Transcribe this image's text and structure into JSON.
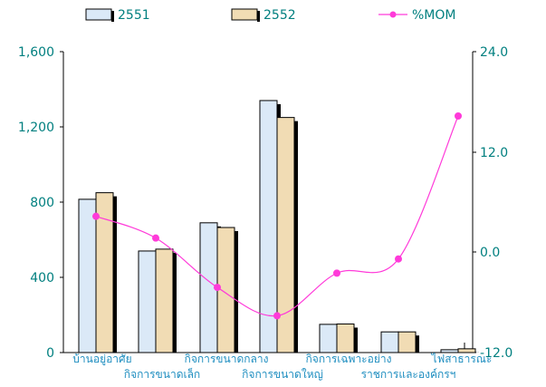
{
  "chart_data": {
    "type": "bar",
    "categories": [
      "บ้านอยู่อาศัย",
      "กิจการขนาดเล็ก",
      "กิจการขนาดกลาง",
      "กิจการขนาดใหญ่",
      "กิจการเฉพาะอย่าง",
      "ราชการและองค์กรฯ",
      "ไฟสาธารณะ"
    ],
    "series": [
      {
        "name": "2551",
        "values": [
          815,
          540,
          690,
          1340,
          150,
          110,
          15
        ],
        "color": "#dbe9f7"
      },
      {
        "name": "2552",
        "values": [
          850,
          550,
          665,
          1250,
          152,
          110,
          20
        ],
        "color": "#f1dcb4"
      }
    ],
    "line_series": {
      "name": "%MOM",
      "values": [
        4.3,
        1.7,
        -4.2,
        -7.6,
        -2.5,
        -0.8,
        16.3
      ],
      "color": "#ff3ad9"
    },
    "y_left": {
      "ticks": [
        "0",
        "400",
        "800",
        "1,200",
        "1,600"
      ],
      "ylim": [
        0,
        1600
      ]
    },
    "y_right": {
      "ticks": [
        "-12.0",
        "0.0",
        "12.0",
        "24.0"
      ],
      "ylim": [
        -12,
        24
      ]
    },
    "legend": {
      "placement": "top",
      "items": [
        "2551",
        "2552",
        "%MOM"
      ]
    },
    "grid": false,
    "text_color": "#007f7f",
    "category_label_color": "#1f8ec0"
  }
}
